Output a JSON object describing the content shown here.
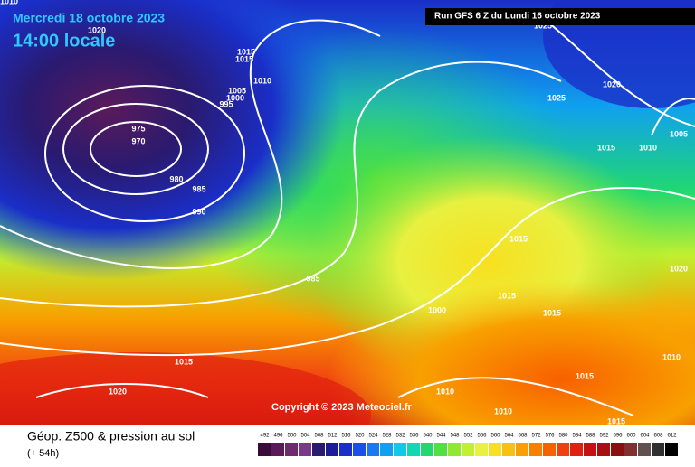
{
  "header": {
    "date": "Mercredi 18 octobre 2023",
    "time": "14:00 locale",
    "run": "Run GFS 6 Z du Lundi 16 octobre 2023"
  },
  "copyright": "Copyright © 2023 Meteociel.fr",
  "footer": {
    "title": "Géop. Z500 & pression au sol",
    "subtitle": "(+ 54h)"
  },
  "scale": {
    "labels": [
      "492",
      "496",
      "500",
      "504",
      "508",
      "512",
      "516",
      "520",
      "524",
      "528",
      "532",
      "536",
      "540",
      "544",
      "548",
      "552",
      "556",
      "560",
      "564",
      "568",
      "572",
      "576",
      "580",
      "584",
      "588",
      "592",
      "596",
      "600",
      "604",
      "608",
      "612"
    ],
    "colors": [
      "#3b0a3b",
      "#5a1a5a",
      "#6e2a6e",
      "#7a3a8a",
      "#2a1a70",
      "#1c1c9a",
      "#1a2ec8",
      "#1a50e8",
      "#1a78f0",
      "#10a0f0",
      "#10c8e8",
      "#10d8b0",
      "#20d870",
      "#50e040",
      "#90e830",
      "#c0f030",
      "#e8f040",
      "#f8e020",
      "#f8c010",
      "#f8a000",
      "#f88000",
      "#f86000",
      "#f04010",
      "#e02010",
      "#c81010",
      "#a81010",
      "#881010",
      "#803030",
      "#605050",
      "#303030",
      "#000000"
    ]
  },
  "isobars": [
    "1010",
    "1020",
    "1015",
    "1015",
    "1010",
    "1005",
    "1000",
    "995",
    "975",
    "970",
    "980",
    "985",
    "990",
    "985",
    "1000",
    "1015",
    "1020",
    "1010",
    "1010",
    "1015",
    "1015",
    "1010",
    "1015",
    "1015",
    "1015",
    "1020",
    "1015",
    "1010",
    "1005",
    "1020",
    "1025",
    "1025"
  ]
}
